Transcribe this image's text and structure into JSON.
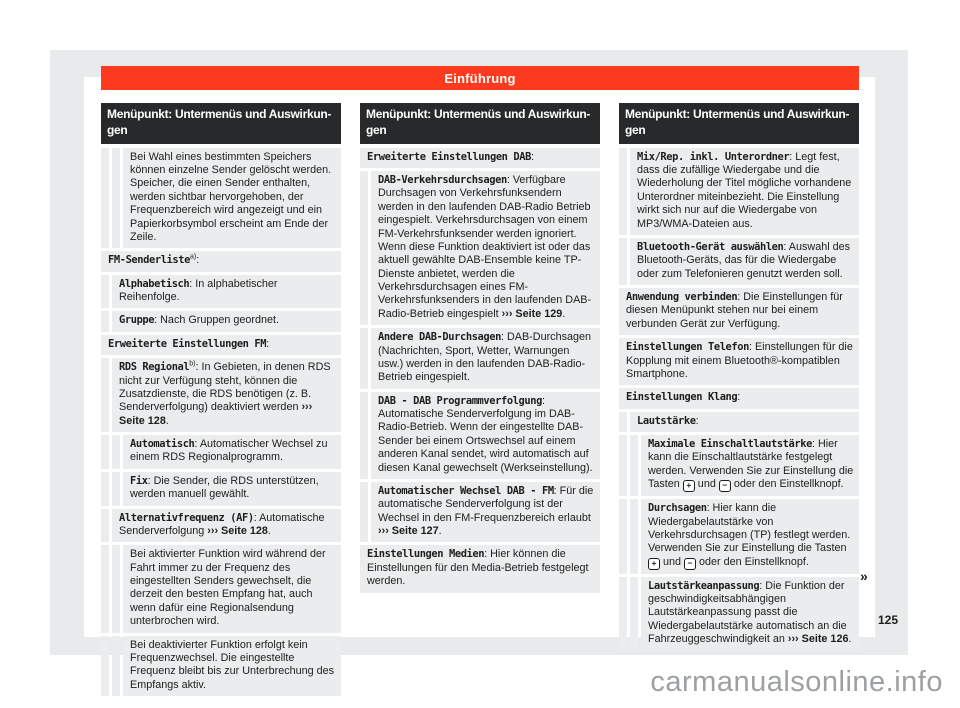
{
  "page": {
    "section_title": "Einführung",
    "page_number": "125",
    "continuation_marker": "»",
    "watermark": "carmanualsonline.info"
  },
  "colors": {
    "accent_red": "#fb3a1e",
    "header_dark": "#28292b",
    "row_gray": "#ebeced",
    "scan_background": "#e8eaeb",
    "watermark_gray": "#9da0a2"
  },
  "columns": [
    {
      "header": "Menüpunkt: Untermenüs und Auswirkun-gen",
      "rows": [
        {
          "level": 2,
          "segments": [
            {
              "t": "txt",
              "v": "Bei Wahl eines bestimmten Speichers können einzelne Sender gelöscht werden. Speicher, die einen Sender enthalten, werden sichtbar hervorgehoben, der Frequenzbereich wird angezeigt und ein Papierkorbsymbol erscheint am Ende der Zeile."
            }
          ]
        },
        {
          "level": 0,
          "segments": [
            {
              "t": "term",
              "v": "FM-Senderliste"
            },
            {
              "t": "sup",
              "v": "a)"
            },
            {
              "t": "txt",
              "v": ":"
            }
          ]
        },
        {
          "level": 1,
          "segments": [
            {
              "t": "term",
              "v": "Alphabetisch"
            },
            {
              "t": "txt",
              "v": ": In alphabetischer Reihenfolge."
            }
          ]
        },
        {
          "level": 1,
          "segments": [
            {
              "t": "term",
              "v": "Gruppe"
            },
            {
              "t": "txt",
              "v": ": Nach Gruppen geordnet."
            }
          ]
        },
        {
          "level": 0,
          "segments": [
            {
              "t": "term",
              "v": "Erweiterte Einstellungen FM"
            },
            {
              "t": "txt",
              "v": ":"
            }
          ]
        },
        {
          "level": 1,
          "segments": [
            {
              "t": "term",
              "v": "RDS Regional"
            },
            {
              "t": "sup",
              "v": "b)"
            },
            {
              "t": "txt",
              "v": ": In Gebieten, in denen RDS nicht zur Verfügung steht, können die Zusatzdienste, die RDS benötigen (z. B. Senderverfolgung) deaktiviert werden "
            },
            {
              "t": "ref",
              "v": "››› Seite 128"
            },
            {
              "t": "txt",
              "v": "."
            }
          ]
        },
        {
          "level": 2,
          "segments": [
            {
              "t": "term",
              "v": "Automatisch"
            },
            {
              "t": "txt",
              "v": ": Automatischer Wechsel zu einem RDS Regionalprogramm."
            }
          ]
        },
        {
          "level": 2,
          "segments": [
            {
              "t": "term",
              "v": "Fix"
            },
            {
              "t": "txt",
              "v": ": Die Sender, die RDS unterstützen, werden manuell gewählt."
            }
          ]
        },
        {
          "level": 1,
          "segments": [
            {
              "t": "term",
              "v": "Alternativfrequenz (AF)"
            },
            {
              "t": "txt",
              "v": ": Automatische Senderverfolgung "
            },
            {
              "t": "ref",
              "v": "››› Seite 128"
            },
            {
              "t": "txt",
              "v": "."
            }
          ]
        },
        {
          "level": 2,
          "segments": [
            {
              "t": "txt",
              "v": "Bei aktivierter Funktion wird während der Fahrt immer zu der Frequenz des eingestellten Senders gewechselt, die derzeit den besten Empfang hat, auch wenn dafür eine Regionalsendung unterbrochen wird."
            }
          ]
        },
        {
          "level": 2,
          "segments": [
            {
              "t": "txt",
              "v": "Bei deaktivierter Funktion erfolgt kein Frequenzwechsel. Die eingestellte Frequenz bleibt bis zur Unterbrechung des Empfangs aktiv."
            }
          ]
        }
      ]
    },
    {
      "header": "Menüpunkt: Untermenüs und Auswirkun-gen",
      "rows": [
        {
          "level": 0,
          "segments": [
            {
              "t": "term",
              "v": "Erweiterte Einstellungen DAB"
            },
            {
              "t": "txt",
              "v": ":"
            }
          ]
        },
        {
          "level": 1,
          "segments": [
            {
              "t": "term",
              "v": "DAB-Verkehrsdurchsagen"
            },
            {
              "t": "txt",
              "v": ": Verfügbare Durchsagen von Verkehrsfunksendern werden in den laufenden DAB-Radio Betrieb eingespielt. Verkehrsdurchsagen von einem FM-Verkehrsfunksender werden ignoriert. Wenn diese Funktion deaktiviert ist oder das aktuell gewählte DAB-Ensemble keine TP-Dienste anbietet, werden die Verkehrsdurchsagen eines FM-Verkehrsfunksenders in den laufenden DAB-Radio-Betrieb eingespielt "
            },
            {
              "t": "ref",
              "v": "››› Seite 129"
            },
            {
              "t": "txt",
              "v": "."
            }
          ]
        },
        {
          "level": 1,
          "segments": [
            {
              "t": "term",
              "v": "Andere DAB-Durchsagen"
            },
            {
              "t": "txt",
              "v": ": DAB-Durchsagen (Nachrichten, Sport, Wetter, Warnungen usw.) werden in den laufenden DAB-Radio-Betrieb eingespielt."
            }
          ]
        },
        {
          "level": 1,
          "segments": [
            {
              "t": "term",
              "v": "DAB - DAB Programmverfolgung"
            },
            {
              "t": "txt",
              "v": ": Automatische Senderverfolgung im DAB-Radio-Betrieb. Wenn der eingestellte DAB-Sender bei einem Ortswechsel auf einem anderen Kanal sendet, wird automatisch auf diesen Kanal gewechselt (Werkseinstellung)."
            }
          ]
        },
        {
          "level": 1,
          "segments": [
            {
              "t": "term",
              "v": "Automatischer Wechsel DAB - FM"
            },
            {
              "t": "txt",
              "v": ": Für die automatische Senderverfolgung ist der Wechsel in den FM-Frequenzbereich erlaubt "
            },
            {
              "t": "ref",
              "v": "››› Seite 127"
            },
            {
              "t": "txt",
              "v": "."
            }
          ]
        },
        {
          "level": 0,
          "segments": [
            {
              "t": "term",
              "v": "Einstellungen Medien"
            },
            {
              "t": "txt",
              "v": ": Hier können die Einstellungen für den Media-Betrieb festgelegt werden."
            }
          ]
        }
      ]
    },
    {
      "header": "Menüpunkt: Untermenüs und Auswirkun-gen",
      "rows": [
        {
          "level": 1,
          "segments": [
            {
              "t": "term",
              "v": "Mix/Rep. inkl. Unterordner"
            },
            {
              "t": "txt",
              "v": ": Legt fest, dass die zufällige Wiedergabe und die Wiederholung der Titel mögliche vorhandene Unterordner miteinbezieht. Die Einstellung wirkt sich nur auf die Wiedergabe von MP3/WMA-Dateien aus."
            }
          ]
        },
        {
          "level": 1,
          "segments": [
            {
              "t": "term",
              "v": "Bluetooth-Gerät auswählen"
            },
            {
              "t": "txt",
              "v": ": Auswahl des Bluetooth-Geräts, das für die Wiedergabe oder zum Telefonieren genutzt werden soll."
            }
          ]
        },
        {
          "level": 0,
          "segments": [
            {
              "t": "term",
              "v": "Anwendung verbinden"
            },
            {
              "t": "txt",
              "v": ": Die Einstellungen für diesen Menüpunkt stehen nur bei einem verbunden Gerät zur Verfügung."
            }
          ]
        },
        {
          "level": 0,
          "segments": [
            {
              "t": "term",
              "v": "Einstellungen Telefon"
            },
            {
              "t": "txt",
              "v": ": Einstellungen für die Kopplung mit einem Bluetooth®-kompatiblen Smartphone."
            }
          ]
        },
        {
          "level": 0,
          "segments": [
            {
              "t": "term",
              "v": "Einstellungen Klang"
            },
            {
              "t": "txt",
              "v": ":"
            }
          ]
        },
        {
          "level": 1,
          "segments": [
            {
              "t": "term",
              "v": "Lautstärke"
            },
            {
              "t": "txt",
              "v": ":"
            }
          ]
        },
        {
          "level": 2,
          "segments": [
            {
              "t": "term",
              "v": "Maximale Einschaltlautstärke"
            },
            {
              "t": "txt",
              "v": ": Hier kann die Einschaltlautstärke festgelegt werden. Verwenden Sie zur Einstellung die Tasten "
            },
            {
              "t": "key",
              "v": "+"
            },
            {
              "t": "txt",
              "v": " und "
            },
            {
              "t": "key",
              "v": "−"
            },
            {
              "t": "txt",
              "v": " oder den Einstellknopf."
            }
          ]
        },
        {
          "level": 2,
          "segments": [
            {
              "t": "term",
              "v": "Durchsagen"
            },
            {
              "t": "txt",
              "v": ": Hier kann die Wiedergabelautstärke von Verkehrsdurchsagen (TP) festlegt werden. Verwenden Sie zur Einstellung die Tasten "
            },
            {
              "t": "key",
              "v": "+"
            },
            {
              "t": "txt",
              "v": " und "
            },
            {
              "t": "key",
              "v": "−"
            },
            {
              "t": "txt",
              "v": " oder den Einstellknopf."
            }
          ]
        },
        {
          "level": 2,
          "segments": [
            {
              "t": "term",
              "v": "Lautstärkeanpassung"
            },
            {
              "t": "txt",
              "v": ": Die Funktion der geschwindigkeitsabhängigen Lautstärkeanpassung passt die Wiedergabelautstärke automatisch an die Fahrzeuggeschwindigkeit an "
            },
            {
              "t": "ref",
              "v": "››› Seite 126"
            },
            {
              "t": "txt",
              "v": "."
            }
          ]
        }
      ]
    }
  ]
}
